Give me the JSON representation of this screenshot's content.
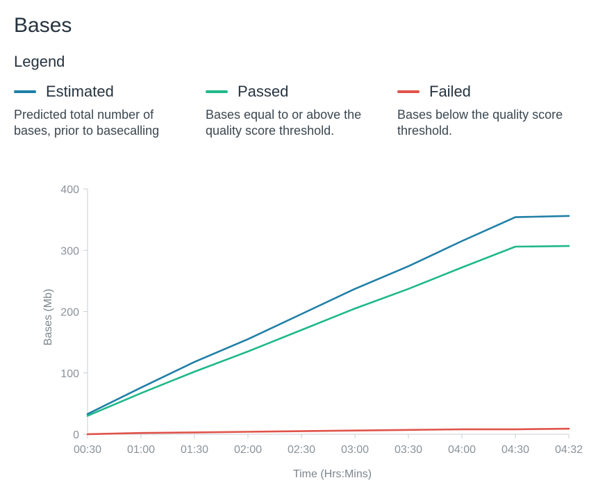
{
  "page": {
    "title": "Bases",
    "legend_heading": "Legend"
  },
  "legend": [
    {
      "name": "Estimated",
      "color": "#1f7fa6",
      "description": "Predicted total number of bases, prior to basecalling"
    },
    {
      "name": "Passed",
      "color": "#1fb88a",
      "description": "Bases equal to or above the quality score threshold."
    },
    {
      "name": "Failed",
      "color": "#e0534a",
      "description": "Bases below the quality score threshold."
    }
  ],
  "chart_data": {
    "type": "line",
    "xlabel": "Time (Hrs:Mins)",
    "ylabel": "Bases (Mb)",
    "ylim": [
      0,
      400
    ],
    "yticks": [
      0,
      100,
      200,
      300,
      400
    ],
    "categories": [
      "00:30",
      "01:00",
      "01:30",
      "02:00",
      "02:30",
      "03:00",
      "03:30",
      "04:00",
      "04:30",
      "04:32"
    ],
    "grid": false,
    "series": [
      {
        "name": "Estimated",
        "color": "#1f7fa6",
        "values": [
          33,
          76,
          118,
          155,
          196,
          237,
          274,
          315,
          354,
          356
        ]
      },
      {
        "name": "Passed",
        "color": "#1fb88a",
        "values": [
          30,
          67,
          102,
          135,
          170,
          205,
          237,
          272,
          306,
          307
        ]
      },
      {
        "name": "Failed",
        "color": "#e0534a",
        "values": [
          0,
          2,
          3,
          4,
          5,
          6,
          7,
          8,
          8,
          9
        ]
      }
    ]
  }
}
